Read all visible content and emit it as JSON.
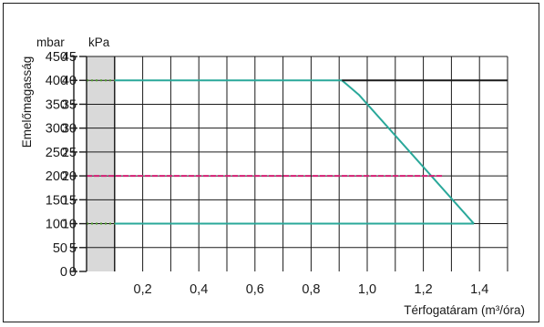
{
  "chart_data": {
    "type": "line",
    "title": "",
    "xlabel": "Térfogatáram (m³/óra)",
    "ylabel": "Emelőmagasság",
    "y_units": [
      "mbar",
      "kPa"
    ],
    "xlim": [
      0,
      1.5
    ],
    "ylim": [
      0,
      450
    ],
    "x_ticks": [
      0.2,
      0.4,
      0.6,
      0.8,
      1.0,
      1.2,
      1.4
    ],
    "x_tick_labels": [
      "0,2",
      "0,4",
      "0,6",
      "0,8",
      "1,0",
      "1,2",
      "1,4"
    ],
    "y_ticks_mbar": [
      0,
      50,
      100,
      150,
      200,
      250,
      300,
      350,
      400,
      450
    ],
    "y_tick_labels_mbar": [
      "0",
      "50",
      "100",
      "150",
      "200",
      "250",
      "300",
      "350",
      "400",
      "450"
    ],
    "y_tick_labels_kpa": [
      "0",
      "5",
      "10",
      "15",
      "20",
      "25",
      "30",
      "35",
      "40",
      "45"
    ],
    "grid": true,
    "shaded_x_range": [
      0,
      0.1
    ],
    "series": [
      {
        "color": "#2aa89a",
        "style": "solid",
        "x": [
          0.1,
          0.91,
          0.97,
          1.38
        ],
        "y": [
          400,
          400,
          370,
          100
        ]
      },
      {
        "color": "#2aa89a",
        "style": "solid",
        "x": [
          0.1,
          1.38
        ],
        "y": [
          100,
          100
        ]
      },
      {
        "color": "#1a1a1a",
        "style": "solid",
        "x": [
          0.91,
          1.5
        ],
        "y": [
          400,
          400
        ]
      },
      {
        "color": "#d21e73",
        "style": "dashed",
        "x": [
          0.0,
          1.27
        ],
        "y": [
          200,
          200
        ]
      }
    ],
    "tick_marks": [
      {
        "color": "#4c9a2a",
        "x": [
          0.0,
          0.1
        ],
        "y": [
          400,
          400
        ]
      },
      {
        "color": "#4c9a2a",
        "x": [
          0.0,
          0.1
        ],
        "y": [
          100,
          100
        ]
      }
    ]
  }
}
